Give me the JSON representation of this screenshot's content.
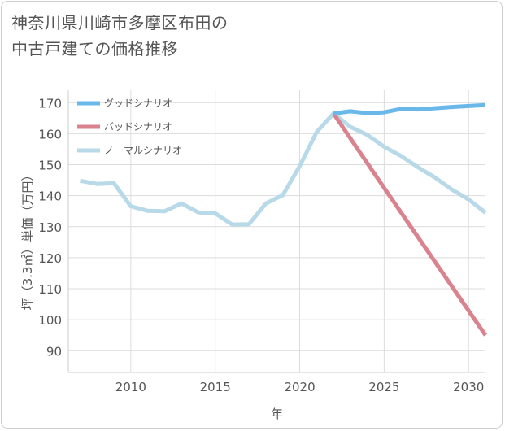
{
  "title_lines": [
    "神奈川県川崎市多摩区布田の",
    "中古戸建ての価格推移"
  ],
  "chart_data": {
    "type": "line",
    "title": "神奈川県川崎市多摩区布田の中古戸建ての価格推移",
    "xlabel": "年",
    "ylabel": "坪（3.3㎡）単価（万円）",
    "xlim": [
      2006.3,
      2031
    ],
    "ylim": [
      83,
      174
    ],
    "xticks": [
      2010,
      2015,
      2020,
      2025,
      2030
    ],
    "yticks": [
      90,
      100,
      110,
      120,
      130,
      140,
      150,
      160,
      170
    ],
    "grid": true,
    "legend_position": "top-left",
    "series": [
      {
        "name": "グッドシナリオ",
        "color": "#6ab8ea",
        "x": [
          2022,
          2023,
          2024,
          2025,
          2026,
          2027,
          2028,
          2029,
          2030,
          2031
        ],
        "y": [
          166.5,
          167.2,
          166.6,
          166.9,
          168.0,
          167.8,
          168.2,
          168.6,
          168.9,
          169.2
        ]
      },
      {
        "name": "バッドシナリオ",
        "color": "#d9838f",
        "x": [
          2022,
          2025,
          2031
        ],
        "y": [
          166.5,
          142.5,
          95.0
        ]
      },
      {
        "name": "ノーマルシナリオ",
        "color": "#b8d9e8",
        "x": [
          2007,
          2008,
          2009,
          2010,
          2011,
          2012,
          2013,
          2014,
          2015,
          2016,
          2017,
          2018,
          2019,
          2020,
          2021,
          2022,
          2023,
          2024,
          2025,
          2026,
          2027,
          2028,
          2029,
          2030,
          2031
        ],
        "y": [
          144.8,
          143.8,
          144.0,
          136.6,
          135.1,
          135.0,
          137.5,
          134.6,
          134.3,
          130.7,
          130.8,
          137.5,
          140.2,
          149.5,
          160.5,
          166.5,
          162.2,
          159.6,
          155.8,
          152.8,
          149.2,
          145.9,
          142.0,
          138.8,
          134.5
        ]
      }
    ]
  }
}
